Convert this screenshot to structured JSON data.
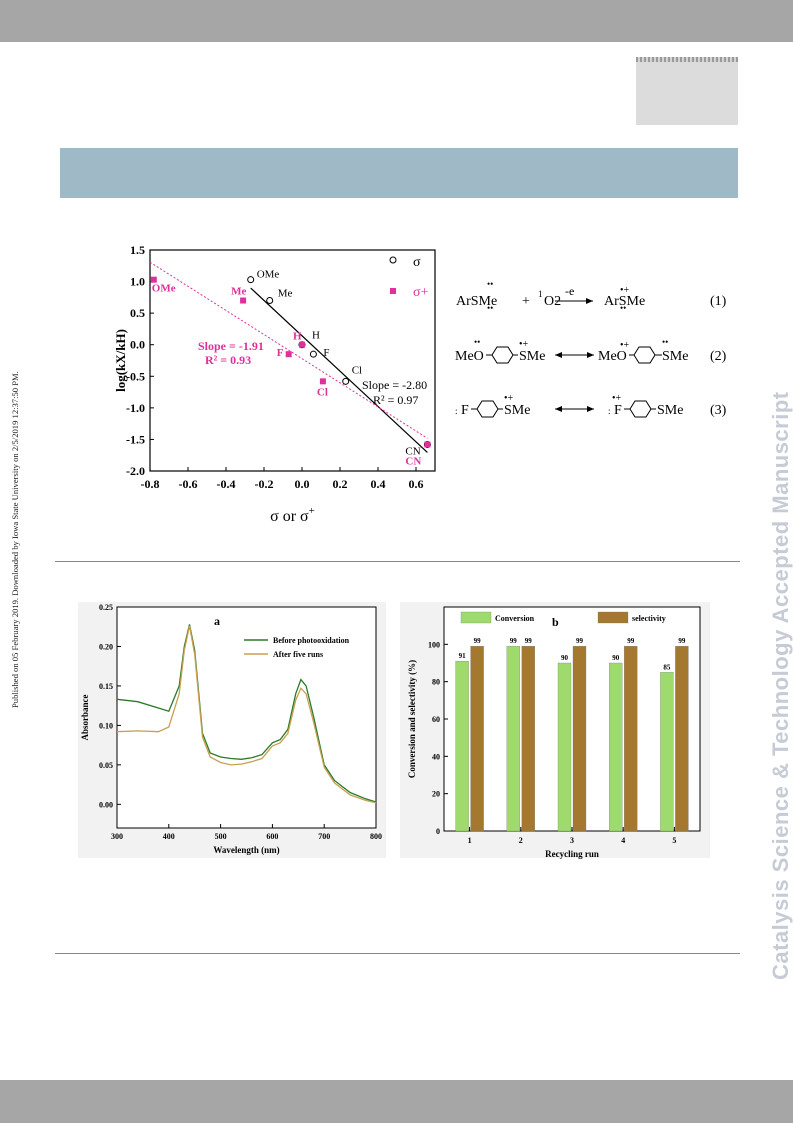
{
  "side_text": "Catalysis Science & Technology Accepted Manuscript",
  "published_text": "Published on 05 February 2019. Downloaded by Iowa State University on 2/5/2019 12:37:50 PM.",
  "colors": {
    "sigma": "#000000",
    "sigma_plus": "#e0309a",
    "conversion": "#9fdb6c",
    "selectivity": "#a57830",
    "before": "#2a7a2a",
    "after": "#c8a050",
    "header_band": "#9fbac6"
  },
  "chart_data": [
    {
      "type": "scatter",
      "xlabel": "σ or σ+",
      "ylabel": "log(kX/kH)",
      "xlim": [
        -0.8,
        0.7
      ],
      "ylim": [
        -2.0,
        1.5
      ],
      "xticks": [
        "-0.8",
        "-0.6",
        "-0.4",
        "-0.2",
        "0.0",
        "0.2",
        "0.4",
        "0.6"
      ],
      "yticks": [
        "1.5",
        "1.0",
        "0.5",
        "0.0",
        "-0.5",
        "-1.0",
        "-1.5",
        "-2.0"
      ],
      "legend": [
        "σ",
        "σ+"
      ],
      "series": [
        {
          "name": "σ",
          "points": [
            {
              "label": "OMe",
              "x": -0.27,
              "y": 1.03
            },
            {
              "label": "Me",
              "x": -0.17,
              "y": 0.7
            },
            {
              "label": "H",
              "x": 0.0,
              "y": 0.0
            },
            {
              "label": "F",
              "x": 0.06,
              "y": -0.15
            },
            {
              "label": "Cl",
              "x": 0.23,
              "y": -0.58
            },
            {
              "label": "CN",
              "x": 0.66,
              "y": -1.58
            }
          ]
        },
        {
          "name": "σ+",
          "points": [
            {
              "label": "OMe",
              "x": -0.78,
              "y": 1.03
            },
            {
              "label": "Me",
              "x": -0.31,
              "y": 0.7
            },
            {
              "label": "H",
              "x": 0.0,
              "y": 0.0
            },
            {
              "label": "F",
              "x": -0.07,
              "y": -0.15
            },
            {
              "label": "Cl",
              "x": 0.11,
              "y": -0.58
            },
            {
              "label": "CN",
              "x": 0.66,
              "y": -1.58
            }
          ]
        }
      ],
      "fits": [
        {
          "series": "σ",
          "slope": -2.8,
          "r2": 0.97,
          "x_range": [
            -0.27,
            0.66
          ],
          "label": "Slope = -2.80",
          "r2_label": "R² = 0.97"
        },
        {
          "series": "σ+",
          "slope": -1.91,
          "r2": 0.93,
          "x_range": [
            -0.8,
            0.66
          ],
          "label": "Slope = -1.91",
          "r2_label": "R² = 0.93"
        }
      ]
    },
    {
      "type": "line",
      "panel": "a",
      "xlabel": "Wavelength (nm)",
      "ylabel": "Absorbance",
      "xlim": [
        300,
        800
      ],
      "ylim": [
        -0.03,
        0.25
      ],
      "xticks": [
        "300",
        "400",
        "500",
        "600",
        "700",
        "800"
      ],
      "yticks": [
        "0.25",
        "0.20",
        "0.15",
        "0.10",
        "0.05",
        "0.00"
      ],
      "series": [
        {
          "name": "Before photooxidation",
          "x": [
            300,
            340,
            380,
            400,
            420,
            430,
            440,
            450,
            465,
            480,
            500,
            520,
            540,
            560,
            580,
            600,
            615,
            630,
            645,
            655,
            665,
            680,
            700,
            720,
            750,
            780,
            800
          ],
          "y": [
            0.133,
            0.13,
            0.122,
            0.118,
            0.15,
            0.2,
            0.228,
            0.195,
            0.09,
            0.065,
            0.06,
            0.058,
            0.057,
            0.059,
            0.063,
            0.078,
            0.082,
            0.095,
            0.14,
            0.158,
            0.15,
            0.11,
            0.05,
            0.03,
            0.015,
            0.007,
            0.003
          ]
        },
        {
          "name": "After five runs",
          "x": [
            300,
            340,
            380,
            400,
            420,
            430,
            440,
            450,
            465,
            480,
            500,
            520,
            540,
            560,
            580,
            600,
            615,
            630,
            645,
            655,
            665,
            680,
            700,
            720,
            750,
            780,
            800
          ],
          "y": [
            0.092,
            0.093,
            0.092,
            0.098,
            0.14,
            0.195,
            0.226,
            0.19,
            0.085,
            0.06,
            0.053,
            0.05,
            0.051,
            0.054,
            0.058,
            0.074,
            0.078,
            0.09,
            0.132,
            0.147,
            0.14,
            0.103,
            0.047,
            0.027,
            0.012,
            0.005,
            0.002
          ]
        }
      ]
    },
    {
      "type": "bar",
      "panel": "b",
      "xlabel": "Recycling run",
      "ylabel": "Conversion and selectivity (%)",
      "ylim": [
        0,
        120
      ],
      "categories": [
        "1",
        "2",
        "3",
        "4",
        "5"
      ],
      "yticks": [
        "0",
        "20",
        "40",
        "60",
        "80",
        "100"
      ],
      "series": [
        {
          "name": "Conversion",
          "values": [
            91,
            99,
            90,
            90,
            85
          ]
        },
        {
          "name": "selectivity",
          "values": [
            99,
            99,
            99,
            99,
            99
          ]
        }
      ]
    }
  ],
  "equations": {
    "eq1": {
      "left": "ArSMe",
      "plus": "+",
      "o2": "O2",
      "o2_sup": "1",
      "arrow_label": "-e",
      "right": "ArSMe",
      "num": "(1)"
    },
    "eq2": {
      "left_me": "MeO",
      "left_sme": "SMe",
      "right_me": "MeO",
      "right_sme": "SMe",
      "num": "(2)"
    },
    "eq3": {
      "left_f": "F",
      "left_sme": "SMe",
      "right_f": "F",
      "right_sme": "SMe",
      "num": "(3)"
    }
  }
}
